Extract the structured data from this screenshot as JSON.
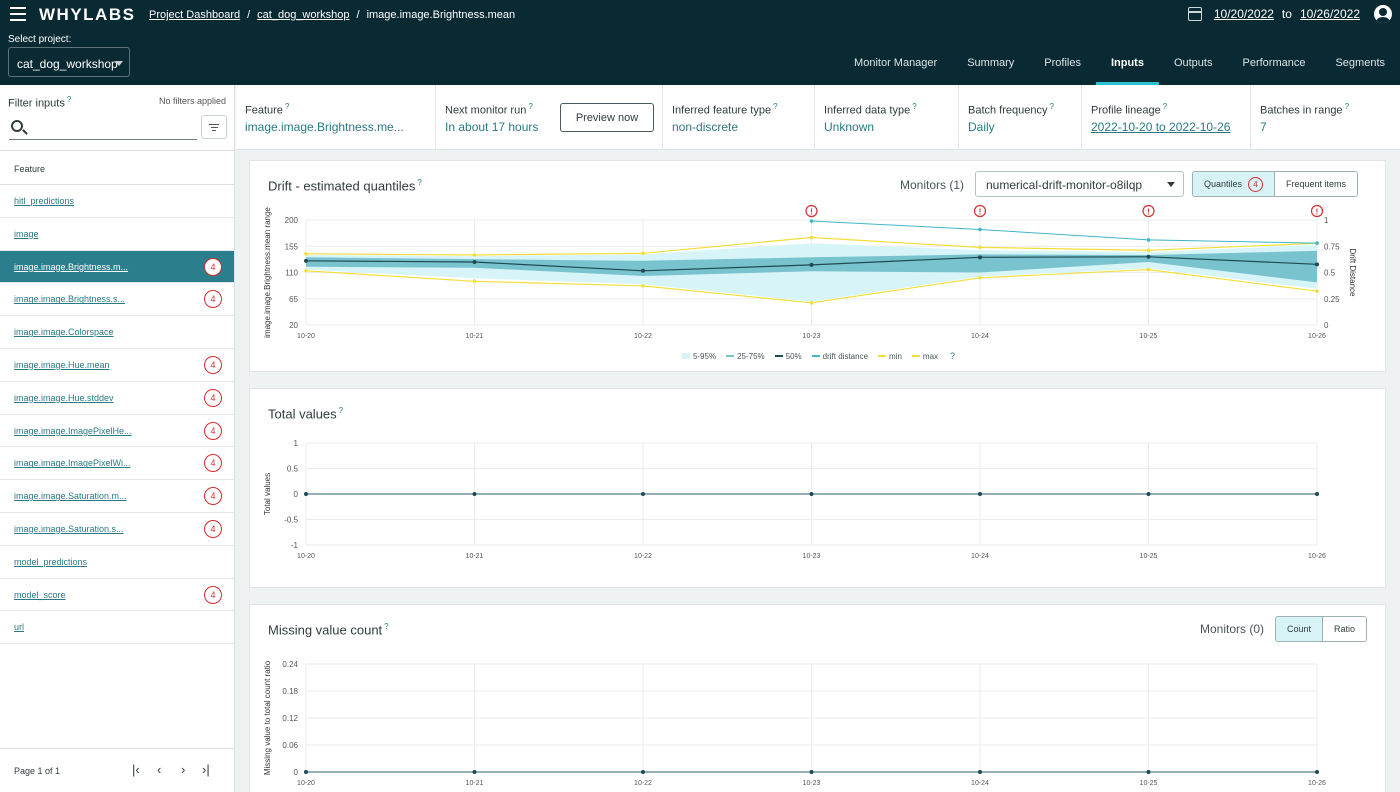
{
  "header": {
    "logo": "WHYLABS",
    "breadcrumbs": [
      "Project Dashboard",
      "cat_dog_workshop",
      "image.image.Brightness.mean"
    ],
    "date_from": "10/20/2022",
    "date_to_label": "to",
    "date_to": "10/26/2022",
    "project_label": "Select project:",
    "project_value": "cat_dog_workshop",
    "tabs": [
      "Monitor Manager",
      "Summary",
      "Profiles",
      "Inputs",
      "Outputs",
      "Performance",
      "Segments"
    ],
    "active_tab": "Inputs"
  },
  "sidebar": {
    "title": "Filter inputs",
    "no_filters": "No filters applied",
    "search_placeholder": "",
    "list_header": "Feature",
    "features": [
      {
        "name": "hitl_predictions",
        "alerts": ""
      },
      {
        "name": "image",
        "alerts": ""
      },
      {
        "name": "image.image.Brightness.m...",
        "alerts": "4",
        "active": true
      },
      {
        "name": "image.image.Brightness.s...",
        "alerts": "4"
      },
      {
        "name": "image.image.Colorspace",
        "alerts": ""
      },
      {
        "name": "image.image.Hue.mean",
        "alerts": "4"
      },
      {
        "name": "image.image.Hue.stddev",
        "alerts": "4"
      },
      {
        "name": "image.image.ImagePixelHe...",
        "alerts": "4"
      },
      {
        "name": "image.image.ImagePixelWi...",
        "alerts": "4"
      },
      {
        "name": "image.image.Saturation.m...",
        "alerts": "4"
      },
      {
        "name": "image.image.Saturation.s...",
        "alerts": "4"
      },
      {
        "name": "model_predictions",
        "alerts": ""
      },
      {
        "name": "model_score",
        "alerts": "4"
      },
      {
        "name": "url",
        "alerts": ""
      }
    ],
    "pager_text": "Page 1 of 1"
  },
  "info": {
    "feature_title": "Feature",
    "feature_value": "image.image.Brightness.me...",
    "next_run_title": "Next monitor run",
    "next_run_value": "In about 17 hours",
    "preview_button": "Preview now",
    "feature_type_title": "Inferred feature type",
    "feature_type_value": "non-discrete",
    "data_type_title": "Inferred data type",
    "data_type_value": "Unknown",
    "batch_title": "Batch frequency",
    "batch_value": "Daily",
    "lineage_title": "Profile lineage",
    "lineage_value": "2022-10-20 to 2022-10-26",
    "batches_title": "Batches in range",
    "batches_value": "7"
  },
  "drift_panel": {
    "title": "Drift - estimated quantiles",
    "monitors_label": "Monitors (1)",
    "monitor_value": "numerical-drift-monitor-o8ilqp",
    "toggle_quantiles": "Quantiles",
    "toggle_badge": "4",
    "toggle_frequent": "Frequent items",
    "legend": [
      "5-95%",
      "25-75%",
      "50%",
      "drift distance",
      "min",
      "max"
    ]
  },
  "total_panel": {
    "title": "Total values"
  },
  "missing_panel": {
    "title": "Missing value count",
    "monitors_label": "Monitors (0)",
    "toggle_count": "Count",
    "toggle_ratio": "Ratio"
  },
  "chart_data": [
    {
      "type": "area",
      "title": "Drift - estimated quantiles",
      "ylabel": "image.image.Brightness.mean range",
      "y2label": "Drift Distance",
      "x": [
        "10-20",
        "10-21",
        "10-22",
        "10-23",
        "10-24",
        "10-25",
        "10-26"
      ],
      "yticks": [
        20,
        65,
        110,
        155,
        200
      ],
      "y2ticks": [
        0,
        0.25,
        0.5,
        0.75,
        1
      ],
      "ylim": [
        20,
        200
      ],
      "y2lim": [
        0,
        1
      ],
      "alerts_at": [
        "10-23",
        "10-24",
        "10-25",
        "10-26"
      ],
      "series": [
        {
          "name": "max",
          "values": [
            142,
            140,
            143,
            170,
            153,
            148,
            160
          ]
        },
        {
          "name": "min",
          "values": [
            113,
            95,
            87,
            58,
            101,
            115,
            78
          ]
        },
        {
          "name": "5-95%",
          "upper": [
            140,
            138,
            141,
            160,
            148,
            145,
            157
          ],
          "lower": [
            115,
            100,
            90,
            60,
            103,
            117,
            82
          ]
        },
        {
          "name": "25-75%",
          "upper": [
            136,
            133,
            130,
            136,
            141,
            140,
            147
          ],
          "lower": [
            120,
            118,
            104,
            112,
            110,
            128,
            93
          ]
        },
        {
          "name": "50%",
          "values": [
            130,
            128,
            113,
            123,
            136,
            137,
            124
          ]
        },
        {
          "name": "drift distance",
          "values": [
            null,
            null,
            null,
            0.99,
            0.91,
            0.81,
            0.78
          ]
        }
      ]
    },
    {
      "type": "line",
      "title": "Total values",
      "ylabel": "Total values",
      "x": [
        "10-20",
        "10-21",
        "10-22",
        "10-23",
        "10-24",
        "10-25",
        "10-26"
      ],
      "yticks": [
        -1,
        -0.5,
        0,
        0.5,
        1
      ],
      "ylim": [
        -1,
        1
      ],
      "series": [
        {
          "values": [
            0,
            0,
            0,
            0,
            0,
            0,
            0
          ]
        }
      ]
    },
    {
      "type": "line",
      "title": "Missing value count",
      "ylabel": "Missing value to total count ratio",
      "x": [
        "10-20",
        "10-21",
        "10-22",
        "10-23",
        "10-24",
        "10-25",
        "10-26"
      ],
      "yticks": [
        0,
        0.06,
        0.12,
        0.18,
        0.24
      ],
      "ylim": [
        0,
        0.24
      ],
      "series": [
        {
          "values": [
            0,
            0,
            0,
            0,
            0,
            0,
            0
          ]
        }
      ]
    }
  ],
  "colors": {
    "header_bg": "#0a2a33",
    "accent": "#2b7e8c",
    "alert": "#d32f2f",
    "quantile_outer": "#d7f4f8",
    "quantile_inner": "#79c3cf",
    "median": "#1f4a52",
    "drift": "#3fb6c9",
    "minmax": "#f2de3a"
  }
}
